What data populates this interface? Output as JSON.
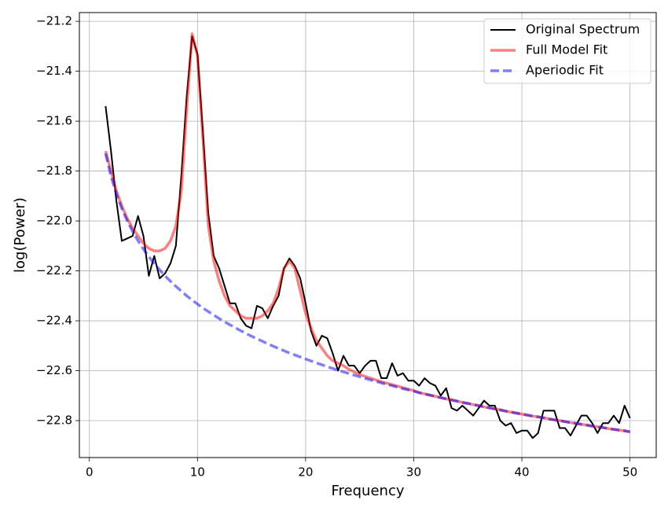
{
  "chart_data": {
    "type": "line",
    "x_label": "Frequency",
    "y_label": "log(Power)",
    "xlim": [
      -0.925,
      52.425
    ],
    "ylim": [
      -22.948,
      -21.165
    ],
    "xticks": [
      0,
      10,
      20,
      30,
      40,
      50
    ],
    "yticks": [
      {
        "value": -21.2,
        "label": "−21.2"
      },
      {
        "value": -21.4,
        "label": "−21.4"
      },
      {
        "value": -21.6,
        "label": "−21.6"
      },
      {
        "value": -21.8,
        "label": "−21.8"
      },
      {
        "value": -22.0,
        "label": "−22.0"
      },
      {
        "value": -22.2,
        "label": "−22.2"
      },
      {
        "value": -22.4,
        "label": "−22.4"
      },
      {
        "value": -22.6,
        "label": "−22.6"
      },
      {
        "value": -22.8,
        "label": "−22.8"
      }
    ],
    "grid": true,
    "legend": "upper right",
    "x": [
      1.5,
      2,
      2.5,
      3,
      3.5,
      4,
      4.5,
      5,
      5.5,
      6,
      6.5,
      7,
      7.5,
      8,
      8.5,
      9,
      9.5,
      10,
      10.5,
      11,
      11.5,
      12,
      12.5,
      13,
      13.5,
      14,
      14.5,
      15,
      15.5,
      16,
      16.5,
      17,
      17.5,
      18,
      18.5,
      19,
      19.5,
      20,
      20.5,
      21,
      21.5,
      22,
      22.5,
      23,
      23.5,
      24,
      24.5,
      25,
      25.5,
      26,
      26.5,
      27,
      27.5,
      28,
      28.5,
      29,
      29.5,
      30,
      30.5,
      31,
      31.5,
      32,
      32.5,
      33,
      33.5,
      34,
      34.5,
      35,
      35.5,
      36,
      36.5,
      37,
      37.5,
      38,
      38.5,
      39,
      39.5,
      40,
      40.5,
      41,
      41.5,
      42,
      42.5,
      43,
      43.5,
      44,
      44.5,
      45,
      45.5,
      46,
      46.5,
      47,
      47.5,
      48,
      48.5,
      49,
      49.5,
      50
    ],
    "series": [
      {
        "name": "Original Spectrum",
        "color": "#000000",
        "alpha": 1,
        "linewidth": 2,
        "linestyle": "solid",
        "values": [
          -21.54,
          -21.72,
          -21.92,
          -22.08,
          -22.07,
          -22.06,
          -21.98,
          -22.06,
          -22.22,
          -22.14,
          -22.23,
          -22.21,
          -22.17,
          -22.1,
          -21.82,
          -21.5,
          -21.26,
          -21.33,
          -21.64,
          -21.97,
          -22.14,
          -22.19,
          -22.26,
          -22.33,
          -22.33,
          -22.39,
          -22.42,
          -22.43,
          -22.34,
          -22.35,
          -22.39,
          -22.34,
          -22.3,
          -22.19,
          -22.15,
          -22.18,
          -22.23,
          -22.33,
          -22.44,
          -22.5,
          -22.46,
          -22.47,
          -22.53,
          -22.6,
          -22.54,
          -22.58,
          -22.58,
          -22.61,
          -22.58,
          -22.56,
          -22.56,
          -22.63,
          -22.63,
          -22.57,
          -22.62,
          -22.61,
          -22.64,
          -22.64,
          -22.66,
          -22.63,
          -22.65,
          -22.66,
          -22.7,
          -22.67,
          -22.75,
          -22.76,
          -22.74,
          -22.76,
          -22.78,
          -22.75,
          -22.72,
          -22.74,
          -22.74,
          -22.8,
          -22.82,
          -22.81,
          -22.85,
          -22.84,
          -22.84,
          -22.87,
          -22.85,
          -22.76,
          -22.76,
          -22.76,
          -22.83,
          -22.83,
          -22.86,
          -22.82,
          -22.78,
          -22.78,
          -22.81,
          -22.85,
          -22.81,
          -22.81,
          -22.78,
          -22.81,
          -22.74,
          -22.79
        ]
      },
      {
        "name": "Full Model Fit",
        "color": "#ff0000",
        "alpha": 0.5,
        "linewidth": 3.5,
        "linestyle": "solid",
        "values": [
          -21.72,
          -21.8,
          -21.88,
          -21.94,
          -21.99,
          -22.03,
          -22.06,
          -22.09,
          -22.11,
          -22.12,
          -22.12,
          -22.11,
          -22.08,
          -22.02,
          -21.88,
          -21.55,
          -21.25,
          -21.34,
          -21.67,
          -22.02,
          -22.16,
          -22.24,
          -22.3,
          -22.34,
          -22.36,
          -22.38,
          -22.39,
          -22.39,
          -22.39,
          -22.38,
          -22.36,
          -22.33,
          -22.27,
          -22.19,
          -22.16,
          -22.19,
          -22.28,
          -22.37,
          -22.43,
          -22.48,
          -22.51,
          -22.54,
          -22.56,
          -22.57,
          -22.58,
          -22.595,
          -22.605,
          -22.615,
          -22.623,
          -22.63,
          -22.637,
          -22.644,
          -22.65,
          -22.656,
          -22.662,
          -22.668,
          -22.674,
          -22.68,
          -22.688,
          -22.693,
          -22.698,
          -22.703,
          -22.708,
          -22.713,
          -22.717,
          -22.722,
          -22.727,
          -22.731,
          -22.736,
          -22.74,
          -22.745,
          -22.749,
          -22.753,
          -22.757,
          -22.762,
          -22.766,
          -22.77,
          -22.774,
          -22.778,
          -22.782,
          -22.785,
          -22.789,
          -22.793,
          -22.797,
          -22.8,
          -22.804,
          -22.808,
          -22.811,
          -22.815,
          -22.818,
          -22.822,
          -22.825,
          -22.828,
          -22.832,
          -22.835,
          -22.838,
          -22.841,
          -22.845
        ]
      },
      {
        "name": "Aperiodic Fit",
        "color": "#0000ff",
        "alpha": 0.5,
        "linewidth": 3.5,
        "linestyle": "dashed",
        "values": [
          -21.73,
          -21.821,
          -21.892,
          -21.95,
          -21.999,
          -22.042,
          -22.079,
          -22.113,
          -22.143,
          -22.171,
          -22.196,
          -22.22,
          -22.242,
          -22.262,
          -22.281,
          -22.3,
          -22.317,
          -22.333,
          -22.349,
          -22.363,
          -22.377,
          -22.391,
          -22.404,
          -22.416,
          -22.428,
          -22.44,
          -22.451,
          -22.462,
          -22.472,
          -22.482,
          -22.492,
          -22.502,
          -22.511,
          -22.52,
          -22.529,
          -22.537,
          -22.545,
          -22.553,
          -22.561,
          -22.569,
          -22.576,
          -22.584,
          -22.591,
          -22.598,
          -22.605,
          -22.611,
          -22.618,
          -22.624,
          -22.631,
          -22.637,
          -22.643,
          -22.649,
          -22.655,
          -22.66,
          -22.666,
          -22.672,
          -22.677,
          -22.682,
          -22.688,
          -22.693,
          -22.698,
          -22.703,
          -22.708,
          -22.713,
          -22.717,
          -22.722,
          -22.727,
          -22.731,
          -22.736,
          -22.74,
          -22.745,
          -22.749,
          -22.753,
          -22.757,
          -22.762,
          -22.766,
          -22.77,
          -22.774,
          -22.778,
          -22.782,
          -22.785,
          -22.789,
          -22.793,
          -22.797,
          -22.8,
          -22.804,
          -22.808,
          -22.811,
          -22.815,
          -22.818,
          -22.822,
          -22.825,
          -22.828,
          -22.832,
          -22.835,
          -22.838,
          -22.841,
          -22.845
        ]
      }
    ]
  }
}
